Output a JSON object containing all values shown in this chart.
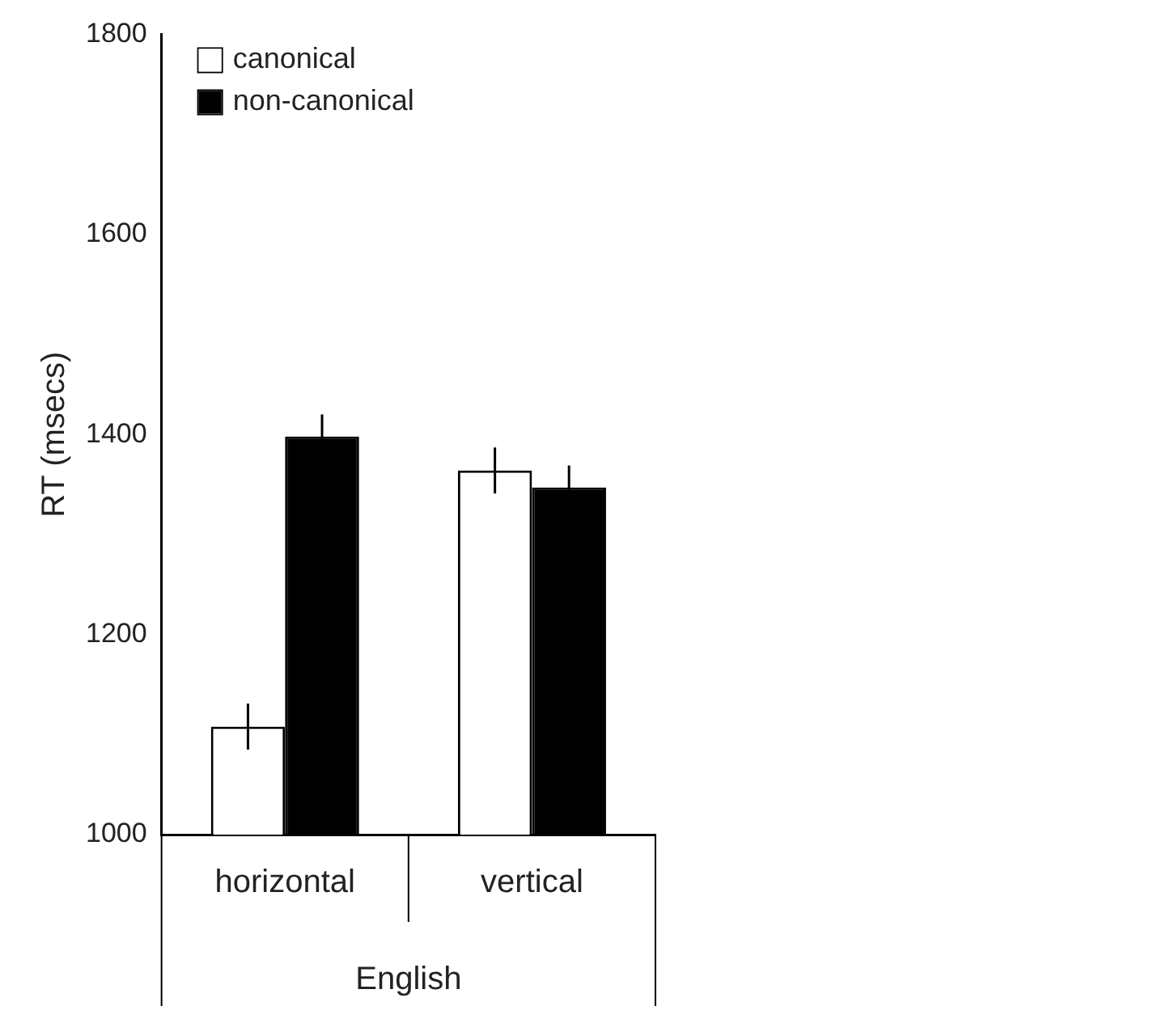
{
  "chart_data": {
    "type": "bar",
    "ylabel": "RT (msecs)",
    "xlabel": "English",
    "categories": [
      "horizontal",
      "vertical"
    ],
    "series": [
      {
        "name": "canonical",
        "color": "#ffffff",
        "values": [
          1108,
          1364
        ],
        "errors": [
          23,
          23
        ]
      },
      {
        "name": "non-canonical",
        "color": "#000000",
        "values": [
          1398,
          1347
        ],
        "errors": [
          22,
          22
        ]
      }
    ],
    "ylim": [
      1000,
      1800
    ],
    "yticks": [
      1000,
      1200,
      1400,
      1600,
      1800
    ],
    "grid": false,
    "legend": "top left"
  }
}
